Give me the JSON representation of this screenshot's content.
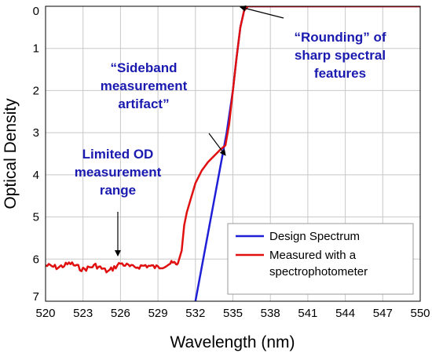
{
  "chart_data": {
    "type": "line",
    "xlabel": "Wavelength (nm)",
    "ylabel": "Optical Density",
    "xlim": [
      520,
      550
    ],
    "ylim": [
      0,
      7
    ],
    "y_inverted": true,
    "x_ticks": [
      520,
      523,
      526,
      529,
      532,
      535,
      538,
      541,
      544,
      547,
      550
    ],
    "y_ticks": [
      0,
      1,
      2,
      3,
      4,
      5,
      6,
      7
    ],
    "grid": true,
    "legend_position": "bottom-right",
    "series": [
      {
        "name": "Design Spectrum",
        "color": "#1f1fd8",
        "x": [
          532.0,
          533.0,
          534.0,
          534.5,
          535.0,
          535.3,
          535.6,
          535.9,
          536.2,
          537.0,
          540.0,
          545.0,
          550.0
        ],
        "y": [
          7.0,
          5.4,
          3.8,
          3.0,
          2.0,
          1.2,
          0.5,
          0.1,
          0.0,
          0.0,
          0.0,
          0.0,
          0.0
        ]
      },
      {
        "name": "Measured with a spectrophotometer",
        "color": "#e01010",
        "x": [
          520.0,
          521.0,
          522.0,
          523.0,
          524.0,
          525.0,
          526.0,
          527.0,
          528.0,
          529.0,
          530.0,
          530.6,
          530.9,
          531.1,
          531.3,
          531.6,
          532.0,
          532.5,
          533.0,
          533.5,
          534.0,
          534.4,
          534.7,
          535.0,
          535.3,
          535.6,
          535.9,
          536.2,
          537.0,
          540.0,
          545.0,
          550.0
        ],
        "y": [
          6.15,
          6.2,
          6.1,
          6.25,
          6.15,
          6.3,
          6.1,
          6.2,
          6.15,
          6.2,
          6.1,
          6.1,
          5.8,
          5.2,
          4.9,
          4.6,
          4.2,
          3.9,
          3.7,
          3.55,
          3.4,
          3.3,
          2.8,
          2.0,
          1.2,
          0.5,
          0.1,
          0.0,
          0.0,
          0.0,
          0.0,
          0.0
        ]
      }
    ],
    "annotations": [
      {
        "lines": [
          "“Sideband",
          "measurement",
          "artifact”"
        ],
        "x": 524.5,
        "y": 2.1,
        "arrow_to": [
          534.3,
          3.35
        ]
      },
      {
        "lines": [
          "“Rounding” of",
          "sharp spectral",
          "features"
        ],
        "x": 542.5,
        "y": 1.4,
        "arrow_to": [
          536.1,
          0.1
        ]
      },
      {
        "lines": [
          "Limited OD",
          "measurement",
          "range"
        ],
        "x": 521.5,
        "y": 4.7,
        "arrow_to": [
          525.5,
          6.2
        ]
      }
    ]
  }
}
